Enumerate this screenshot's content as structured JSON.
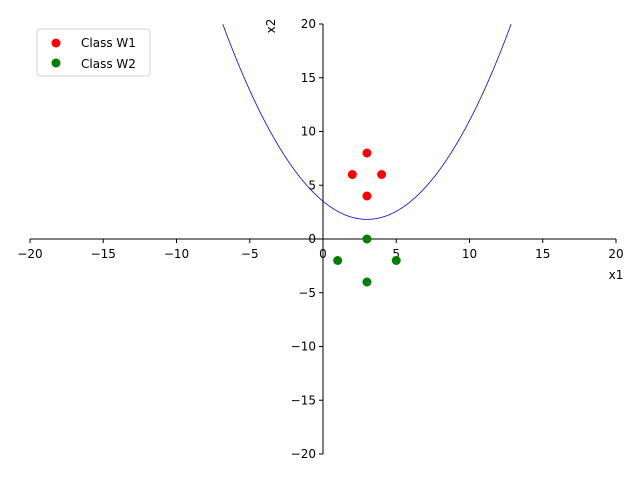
{
  "chart_data": {
    "type": "scatter",
    "xlabel": "x1",
    "ylabel": "x2",
    "xlim": [
      -20,
      20
    ],
    "ylim": [
      -20,
      20
    ],
    "xticks": [
      -20,
      -15,
      -10,
      -5,
      0,
      5,
      10,
      15,
      20
    ],
    "yticks": [
      -20,
      -15,
      -10,
      -5,
      0,
      5,
      10,
      15,
      20
    ],
    "xtick_labels": [
      "−20",
      "−15",
      "−10",
      "−5",
      "0",
      "5",
      "10",
      "15",
      "20"
    ],
    "ytick_labels": [
      "−20",
      "−15",
      "−10",
      "−5",
      "0",
      "5",
      "10",
      "15",
      "20"
    ],
    "legend_position": "top-left",
    "series": [
      {
        "name": "Class W1",
        "color": "#ff0000",
        "points": [
          [
            3,
            8
          ],
          [
            2,
            6
          ],
          [
            4,
            6
          ],
          [
            3,
            4
          ]
        ]
      },
      {
        "name": "Class W2",
        "color": "#008000",
        "points": [
          [
            3,
            0
          ],
          [
            1,
            -2
          ],
          [
            5,
            -2
          ],
          [
            3,
            -4
          ]
        ]
      }
    ],
    "curve": {
      "color": "#0000ff",
      "equation": "x2 = 3.514 - 1.125*x1 + 0.1875*x1^2",
      "coefficients": [
        3.514,
        -1.125,
        0.1875
      ]
    }
  }
}
